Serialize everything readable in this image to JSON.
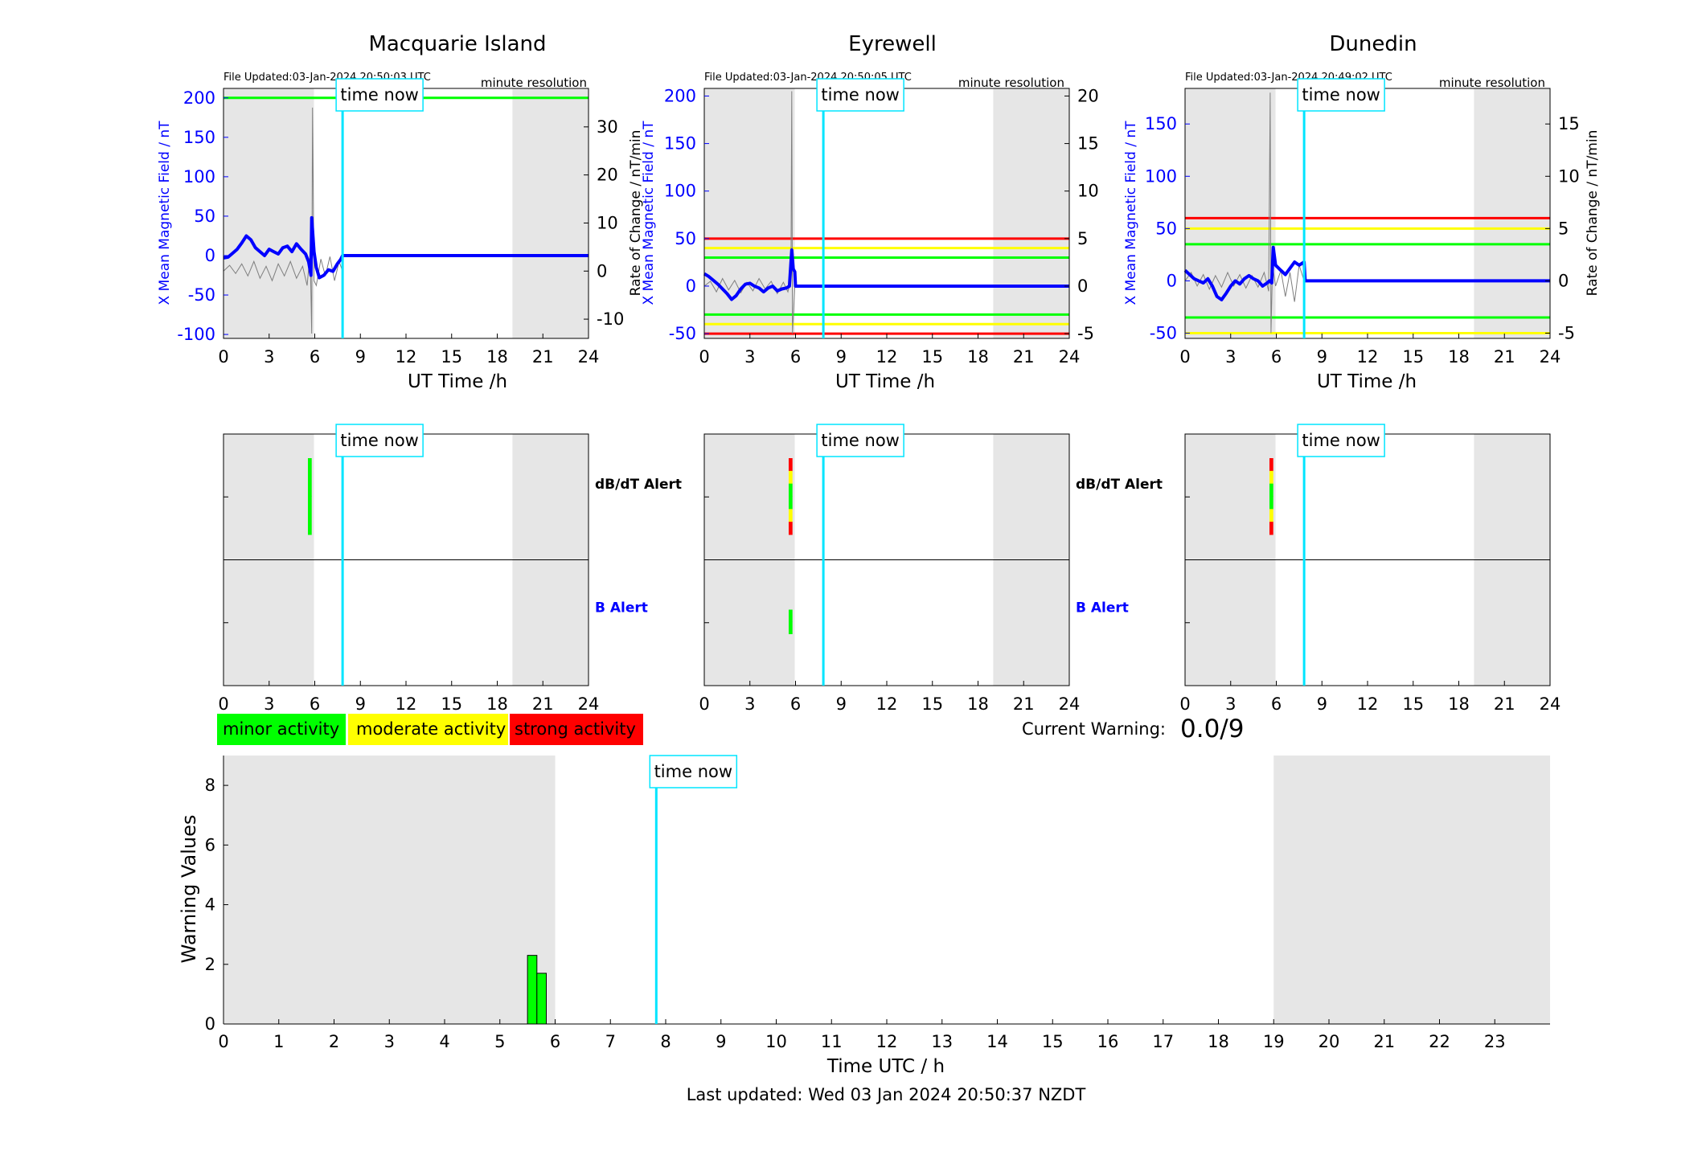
{
  "figure": {
    "footer": "Last updated: Wed 03 Jan 2024 20:50:37 NZDT",
    "current_warning_label": "Current Warning:",
    "current_warning_value": "0.0/9",
    "time_now_label": "time now",
    "legend": [
      {
        "label": "minor activity",
        "color": "#00ff00"
      },
      {
        "label": "moderate activity",
        "color": "#ffff00"
      },
      {
        "label": "strong activity",
        "color": "#ff0000"
      }
    ]
  },
  "colors": {
    "field_blue": "#0000ff",
    "time_now_line": "#00e5ff",
    "night_shade": "#e6e6e6",
    "rate_trace": "#7f7f7f"
  },
  "chart_data": [
    {
      "type": "line",
      "title": "Macquarie Island",
      "updated": "File Updated:03-Jan-2024 20:50:03 UTC",
      "resolution": "minute resolution",
      "xlabel": "UT Time /h",
      "ylabel": "X Mean Magnetic Field / nT",
      "y2label": "",
      "xlim": [
        0,
        24
      ],
      "ylim": [
        -105,
        212
      ],
      "y2lim": [
        -14,
        38
      ],
      "xticks": [
        0,
        3,
        6,
        9,
        12,
        15,
        18,
        21,
        24
      ],
      "yticks": [
        -100,
        -50,
        0,
        50,
        100,
        150,
        200
      ],
      "y2ticks": [
        -10,
        0,
        10,
        20,
        30
      ],
      "night_shading": [
        [
          0,
          5.95
        ],
        [
          19,
          24
        ]
      ],
      "time_now": 7.83,
      "thresholds": [
        {
          "y": 200,
          "level": "minor"
        }
      ],
      "series": [
        {
          "axis": "left",
          "x": [
            0,
            0.3,
            0.6,
            0.9,
            1.2,
            1.5,
            1.8,
            2.1,
            2.4,
            2.7,
            3.0,
            3.3,
            3.6,
            3.9,
            4.2,
            4.5,
            4.8,
            5.1,
            5.4,
            5.6,
            5.75,
            5.8,
            5.95,
            6.1,
            6.3,
            6.6,
            6.9,
            7.2,
            7.5,
            7.7,
            7.83,
            24
          ],
          "y": [
            -3,
            -2,
            3,
            8,
            16,
            25,
            20,
            10,
            5,
            0,
            8,
            5,
            2,
            10,
            12,
            5,
            15,
            8,
            2,
            -8,
            -25,
            48,
            5,
            -15,
            -28,
            -25,
            -18,
            -20,
            -10,
            -5,
            0,
            0
          ]
        },
        {
          "axis": "right",
          "x": [
            0,
            0.4,
            0.8,
            1.2,
            1.6,
            2.0,
            2.4,
            2.8,
            3.2,
            3.6,
            4.0,
            4.4,
            4.8,
            5.2,
            5.5,
            5.7,
            5.8,
            5.85,
            5.95,
            6.1,
            6.4,
            6.7,
            7.0,
            7.3,
            7.6,
            7.83
          ],
          "y": [
            0,
            1.2,
            -0.5,
            1.5,
            -1,
            2,
            -1.5,
            1,
            -2,
            1.5,
            -1,
            2,
            -1.5,
            1,
            -3,
            4,
            -13,
            34,
            -2,
            -3,
            2.5,
            -1,
            3,
            -2,
            2,
            0
          ]
        }
      ]
    },
    {
      "type": "line",
      "title": "Eyrewell",
      "updated": "File Updated:03-Jan-2024 20:50:05 UTC",
      "resolution": "minute resolution",
      "xlabel": "UT Time /h",
      "ylabel": "X Mean Magnetic Field / nT",
      "y2label": "Rate of Change / nT/min",
      "xlim": [
        0,
        24
      ],
      "ylim": [
        -55,
        208
      ],
      "y2lim": [
        -5.5,
        20.8
      ],
      "xticks": [
        0,
        3,
        6,
        9,
        12,
        15,
        18,
        21,
        24
      ],
      "yticks": [
        -50,
        0,
        50,
        100,
        150,
        200
      ],
      "y2ticks": [
        -5,
        0,
        5,
        10,
        15,
        20
      ],
      "night_shading": [
        [
          0,
          5.95
        ],
        [
          19,
          24
        ]
      ],
      "time_now": 7.83,
      "thresholds": [
        {
          "y": 50,
          "level": "strong"
        },
        {
          "y": 40,
          "level": "moderate"
        },
        {
          "y": 30,
          "level": "minor"
        },
        {
          "y": -30,
          "level": "minor"
        },
        {
          "y": -40,
          "level": "moderate"
        },
        {
          "y": -50,
          "level": "strong"
        }
      ],
      "series": [
        {
          "axis": "left",
          "x": [
            0,
            0.3,
            0.6,
            0.9,
            1.2,
            1.5,
            1.8,
            2.1,
            2.4,
            2.7,
            3.0,
            3.3,
            3.6,
            3.9,
            4.2,
            4.5,
            4.8,
            5.1,
            5.4,
            5.6,
            5.75,
            5.85,
            5.95,
            6.0,
            24
          ],
          "y": [
            13,
            10,
            6,
            2,
            -3,
            -8,
            -14,
            -10,
            -3,
            2,
            3,
            0,
            -2,
            -6,
            -2,
            0,
            -5,
            -3,
            -2,
            0,
            38,
            18,
            15,
            0,
            0
          ]
        },
        {
          "axis": "right",
          "x": [
            0,
            0.4,
            0.8,
            1.2,
            1.6,
            2.0,
            2.4,
            2.8,
            3.2,
            3.6,
            4.0,
            4.4,
            4.8,
            5.2,
            5.5,
            5.7,
            5.75,
            5.8,
            5.95
          ],
          "y": [
            0,
            0.5,
            -0.6,
            0.8,
            -0.4,
            0.6,
            -0.7,
            0.4,
            -0.5,
            0.8,
            -0.3,
            0.5,
            -0.8,
            0.4,
            -0.6,
            0.8,
            20.5,
            -5,
            0
          ]
        }
      ]
    },
    {
      "type": "line",
      "title": "Dunedin",
      "updated": "File Updated:03-Jan-2024 20:49:02 UTC",
      "resolution": "minute resolution",
      "xlabel": "UT Time /h",
      "ylabel": "X Mean Magnetic Field / nT",
      "y2label": "Rate of Change / nT/min",
      "xlim": [
        0,
        24
      ],
      "ylim": [
        -55,
        184
      ],
      "y2lim": [
        -5.5,
        18.4
      ],
      "xticks": [
        0,
        3,
        6,
        9,
        12,
        15,
        18,
        21,
        24
      ],
      "yticks": [
        -50,
        0,
        50,
        100,
        150
      ],
      "y2ticks": [
        -5,
        0,
        5,
        10,
        15
      ],
      "night_shading": [
        [
          0,
          5.95
        ],
        [
          19,
          24
        ]
      ],
      "time_now": 7.83,
      "thresholds": [
        {
          "y": 60,
          "level": "strong"
        },
        {
          "y": 50,
          "level": "moderate"
        },
        {
          "y": 35,
          "level": "minor"
        },
        {
          "y": -35,
          "level": "minor"
        },
        {
          "y": -50,
          "level": "moderate"
        }
      ],
      "series": [
        {
          "axis": "left",
          "x": [
            0,
            0.3,
            0.6,
            0.9,
            1.2,
            1.5,
            1.8,
            2.1,
            2.4,
            2.7,
            3.0,
            3.3,
            3.6,
            3.9,
            4.2,
            4.5,
            4.8,
            5.1,
            5.4,
            5.55,
            5.7,
            5.8,
            5.95,
            6.3,
            6.6,
            6.9,
            7.2,
            7.5,
            7.83,
            7.9,
            24
          ],
          "y": [
            10,
            6,
            2,
            0,
            -2,
            2,
            -5,
            -15,
            -18,
            -12,
            -5,
            0,
            -3,
            2,
            5,
            2,
            0,
            -5,
            -2,
            0,
            -2,
            32,
            15,
            10,
            6,
            12,
            18,
            15,
            18,
            0,
            0
          ]
        },
        {
          "axis": "right",
          "x": [
            0,
            0.4,
            0.8,
            1.2,
            1.6,
            2.0,
            2.4,
            2.8,
            3.2,
            3.6,
            4.0,
            4.4,
            4.8,
            5.2,
            5.5,
            5.6,
            5.65,
            5.75,
            5.95,
            6.3,
            6.6,
            6.9,
            7.2,
            7.5,
            7.83
          ],
          "y": [
            0,
            0.8,
            -0.5,
            0.6,
            -0.8,
            0.5,
            -0.6,
            0.8,
            -0.5,
            0.6,
            -0.7,
            0.5,
            -0.6,
            0.8,
            -1,
            18,
            -5,
            1.5,
            -0.5,
            1,
            -1.5,
            0.8,
            -2,
            1.5,
            0
          ]
        }
      ]
    },
    {
      "type": "bar",
      "title": "",
      "xlim": [
        0,
        24
      ],
      "xticks": [
        0,
        3,
        6,
        9,
        12,
        15,
        18,
        21,
        24
      ],
      "y_labels": [
        "dB/dT Alert",
        "B Alert"
      ],
      "night_shading": [
        [
          0,
          5.95
        ],
        [
          19,
          24
        ]
      ],
      "time_now": 7.83,
      "segments": [
        {
          "row": "dB/dT Alert",
          "t": [
            5.55,
            5.8
          ],
          "levels": [
            "minor",
            "minor"
          ]
        }
      ]
    },
    {
      "type": "bar",
      "title": "",
      "xlim": [
        0,
        24
      ],
      "xticks": [
        0,
        3,
        6,
        9,
        12,
        15,
        18,
        21,
        24
      ],
      "y_labels": [
        "dB/dT Alert",
        "B Alert"
      ],
      "night_shading": [
        [
          0,
          5.95
        ],
        [
          19,
          24
        ]
      ],
      "time_now": 7.83,
      "segments": [
        {
          "row": "dB/dT Alert",
          "t": [
            5.55,
            5.8
          ],
          "levels": [
            "strong",
            "moderate",
            "minor",
            "minor",
            "moderate",
            "strong"
          ]
        },
        {
          "row": "B Alert",
          "t": [
            5.55,
            5.8
          ],
          "levels": [
            "minor",
            "minor"
          ]
        }
      ]
    },
    {
      "type": "bar",
      "title": "",
      "xlim": [
        0,
        24
      ],
      "xticks": [
        0,
        3,
        6,
        9,
        12,
        15,
        18,
        21,
        24
      ],
      "y_labels": [
        "dB/dT Alert",
        "B Alert"
      ],
      "night_shading": [
        [
          0,
          5.95
        ],
        [
          19,
          24
        ]
      ],
      "time_now": 7.83,
      "segments": [
        {
          "row": "dB/dT Alert",
          "t": [
            5.55,
            5.8
          ],
          "levels": [
            "strong",
            "moderate",
            "minor",
            "minor",
            "moderate",
            "strong"
          ]
        }
      ]
    },
    {
      "type": "bar",
      "title": "",
      "xlabel": "Time UTC / h",
      "ylabel": "Warning Values",
      "xlim": [
        0,
        24
      ],
      "ylim": [
        0,
        9
      ],
      "xticks": [
        0,
        1,
        2,
        3,
        4,
        5,
        6,
        7,
        8,
        9,
        10,
        11,
        12,
        13,
        14,
        15,
        16,
        17,
        18,
        19,
        20,
        21,
        22,
        23
      ],
      "yticks": [
        0,
        2,
        4,
        6,
        8
      ],
      "night_shading": [
        [
          0,
          6
        ],
        [
          19,
          24
        ]
      ],
      "time_now": 7.83,
      "bars": [
        {
          "x": 5.5,
          "width": 0.17,
          "value": 2.3,
          "level": "minor"
        },
        {
          "x": 5.67,
          "width": 0.17,
          "value": 1.7,
          "level": "minor"
        }
      ]
    }
  ]
}
